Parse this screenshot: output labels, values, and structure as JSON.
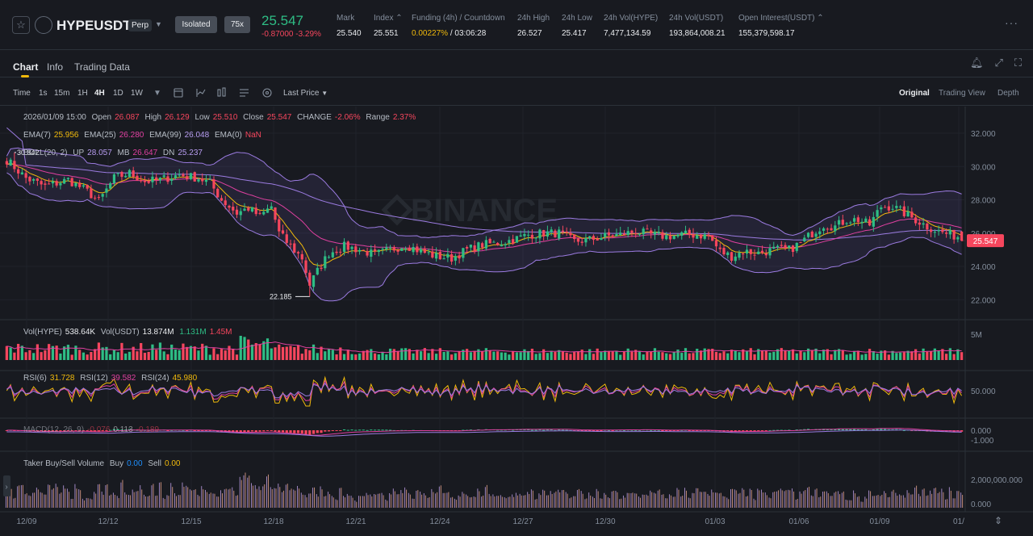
{
  "header": {
    "symbol": "HYPEUSDT",
    "contract_type": "Perp",
    "margin_mode": "Isolated",
    "leverage": "75x",
    "last_price": "25.547",
    "change_abs": "-0.87000",
    "change_pct": "-3.29%",
    "stats": [
      {
        "label": "Mark",
        "value": "25.540"
      },
      {
        "label": "Index ⌃",
        "value": "25.551"
      },
      {
        "label": "Funding (4h) / Countdown",
        "value_a": "0.00227%",
        "value_b": " / 03:06:28"
      },
      {
        "label": "24h High",
        "value": "26.527"
      },
      {
        "label": "24h Low",
        "value": "25.417"
      },
      {
        "label": "24h Vol(HYPE)",
        "value": "7,477,134.59"
      },
      {
        "label": "24h Vol(USDT)",
        "value": "193,864,008.21"
      },
      {
        "label": "Open Interest(USDT) ⌃",
        "value": "155,379,598.17"
      }
    ],
    "more": "···"
  },
  "tabs": [
    "Chart",
    "Info",
    "Trading Data"
  ],
  "toolbar": {
    "time_label": "Time",
    "intervals": [
      "1s",
      "15m",
      "1H",
      "4H",
      "1D",
      "1W"
    ],
    "active_interval": "4H",
    "price_type": "Last Price",
    "views": [
      "Original",
      "Trading View",
      "Depth"
    ],
    "active_view": "Original"
  },
  "ohlc_legend": {
    "date": "2026/01/09 15:00",
    "open_label": "Open",
    "open": "26.087",
    "high_label": "High",
    "high": "26.129",
    "low_label": "Low",
    "low": "25.510",
    "close_label": "Close",
    "close": "25.547",
    "change_label": "CHANGE",
    "change": "-2.06%",
    "range_label": "Range",
    "range": "2.37%"
  },
  "ema_legend": {
    "ema7_label": "EMA(7)",
    "ema7": "25.956",
    "ema25_label": "EMA(25)",
    "ema25": "26.280",
    "ema99_label": "EMA(99)",
    "ema99": "26.048",
    "ema0_label": "EMA(0)",
    "ema0": "NaN"
  },
  "boll_legend": {
    "label": "BOLL(20, 2)",
    "up_label": "UP",
    "up": "28.057",
    "mb_label": "MB",
    "mb": "26.647",
    "dn_label": "DN",
    "dn": "25.237"
  },
  "vol_legend": {
    "vol_label": "Vol(HYPE)",
    "vol": "538.64K",
    "volusdt_label": "Vol(USDT)",
    "volusdt": "13.874M",
    "ma1": "1.131M",
    "ma2": "1.45M"
  },
  "rsi_legend": {
    "rsi6_label": "RSI(6)",
    "rsi6": "31.728",
    "rsi12_label": "RSI(12)",
    "rsi12": "39.582",
    "rsi24_label": "RSI(24)",
    "rsi24": "45.980"
  },
  "macd_legend": {
    "label": "MACD(12, 26, 9)",
    "v1": "-0.076",
    "v2": "0.113",
    "v3": "-0.189"
  },
  "taker_legend": {
    "label": "Taker Buy/Sell Volume",
    "buy_label": "Buy",
    "buy": "0.00",
    "sell_label": "Sell",
    "sell": "0.00"
  },
  "watermark": "BINANCE",
  "colors": {
    "up": "#2ebd85",
    "down": "#f6465d",
    "bg": "#181a20",
    "grid": "#2b3139",
    "ema7": "#f0b90b",
    "ema25": "#e040a0",
    "ema99": "#9b7be0",
    "boll": "#9b7be0",
    "text_muted": "#848e9c"
  },
  "chart_data": {
    "type": "candlestick",
    "title": "HYPEUSDT Perp 4H",
    "x_ticks": [
      "12/09",
      "12/12",
      "12/15",
      "12/18",
      "12/21",
      "12/24",
      "12/27",
      "12/30",
      "01/03",
      "01/06",
      "01/09",
      "01/"
    ],
    "price_axis": {
      "ticks": [
        "32.000",
        "30.000",
        "28.000",
        "26.000",
        "24.000",
        "22.000"
      ],
      "ylim": [
        20.8,
        33.6
      ]
    },
    "markers": {
      "high": "30.842",
      "low": "22.185",
      "last": "25.547"
    },
    "anchors": [
      [
        0,
        30.4
      ],
      [
        5,
        29.3
      ],
      [
        10,
        28.8
      ],
      [
        16,
        29.2
      ],
      [
        21,
        28.5
      ],
      [
        24,
        27.9
      ],
      [
        28,
        29.3
      ],
      [
        32,
        29.6
      ],
      [
        36,
        29.1
      ],
      [
        40,
        29.2
      ],
      [
        45,
        29.5
      ],
      [
        50,
        29.3
      ],
      [
        53,
        29.0
      ],
      [
        56,
        28.0
      ],
      [
        60,
        27.2
      ],
      [
        63,
        27.5
      ],
      [
        66,
        27.0
      ],
      [
        69,
        27.6
      ],
      [
        71,
        26.0
      ],
      [
        74,
        25.2
      ],
      [
        77,
        24.5
      ],
      [
        79,
        22.9
      ],
      [
        81,
        23.7
      ],
      [
        84,
        24.8
      ],
      [
        88,
        25.2
      ],
      [
        92,
        25.0
      ],
      [
        96,
        24.7
      ],
      [
        100,
        25.0
      ],
      [
        104,
        25.3
      ],
      [
        108,
        24.9
      ],
      [
        112,
        24.6
      ],
      [
        116,
        24.5
      ],
      [
        120,
        25.0
      ],
      [
        124,
        25.3
      ],
      [
        128,
        25.4
      ],
      [
        132,
        25.6
      ],
      [
        136,
        25.9
      ],
      [
        140,
        26.0
      ],
      [
        144,
        26.0
      ],
      [
        148,
        25.5
      ],
      [
        152,
        25.6
      ],
      [
        156,
        25.8
      ],
      [
        160,
        25.9
      ],
      [
        164,
        26.1
      ],
      [
        168,
        25.9
      ],
      [
        172,
        25.8
      ],
      [
        176,
        25.9
      ],
      [
        180,
        25.9
      ],
      [
        183,
        25.8
      ],
      [
        186,
        24.9
      ],
      [
        189,
        24.6
      ],
      [
        192,
        24.9
      ],
      [
        196,
        24.8
      ],
      [
        200,
        25.0
      ],
      [
        204,
        25.0
      ],
      [
        207,
        25.4
      ],
      [
        210,
        26.0
      ],
      [
        213,
        26.5
      ],
      [
        216,
        26.4
      ],
      [
        219,
        26.8
      ],
      [
        222,
        26.8
      ],
      [
        225,
        26.5
      ],
      [
        228,
        27.6
      ],
      [
        231,
        27.6
      ],
      [
        234,
        27.2
      ],
      [
        237,
        26.8
      ],
      [
        240,
        26.4
      ],
      [
        243,
        26.1
      ],
      [
        246,
        25.9
      ],
      [
        248,
        25.8
      ],
      [
        249,
        25.5
      ]
    ],
    "indicators": {
      "ema7": 25.956,
      "ema25": 26.28,
      "ema99": 26.048,
      "boll_up": 28.057,
      "boll_mb": 26.647,
      "boll_dn": 25.237,
      "rsi6": 31.728,
      "rsi12": 39.582,
      "rsi24": 45.98,
      "macd": [
        -0.076,
        0.113,
        -0.189
      ]
    },
    "volume_axis": {
      "ticks": [
        "5M"
      ]
    },
    "rsi_axis": {
      "ticks": [
        "50.000"
      ]
    },
    "macd_axis": {
      "ticks": [
        "0.000",
        "-1.000"
      ]
    },
    "taker_axis": {
      "ticks": [
        "2,000,000.000",
        "0.000"
      ]
    }
  }
}
